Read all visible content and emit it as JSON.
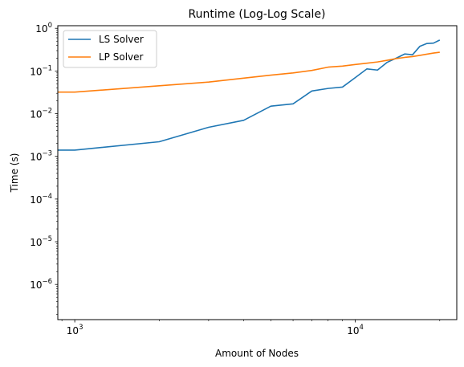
{
  "chart_data": {
    "type": "line",
    "title": "Runtime (Log-Log Scale)",
    "xlabel": "Amount of Nodes",
    "ylabel": "Time (s)",
    "xscale": "log",
    "yscale": "log",
    "xlim": [
      870,
      23000
    ],
    "ylim": [
      1.5e-07,
      1.15
    ],
    "grid": false,
    "legend": "top-left",
    "x_ticks": [
      {
        "value": 1000,
        "base": "10",
        "exp": "3"
      },
      {
        "value": 10000,
        "base": "10",
        "exp": "4"
      }
    ],
    "y_ticks": [
      {
        "value": 1e-06,
        "base": "10",
        "exp": "−6"
      },
      {
        "value": 1e-05,
        "base": "10",
        "exp": "−5"
      },
      {
        "value": 0.0001,
        "base": "10",
        "exp": "−4"
      },
      {
        "value": 0.001,
        "base": "10",
        "exp": "−3"
      },
      {
        "value": 0.01,
        "base": "10",
        "exp": "−2"
      },
      {
        "value": 0.1,
        "base": "10",
        "exp": "−1"
      },
      {
        "value": 1,
        "base": "10",
        "exp": "0"
      }
    ],
    "series": [
      {
        "name": "LS Solver",
        "color": "#1f77b4",
        "x": [
          870,
          1000,
          2000,
          3000,
          4000,
          5000,
          6000,
          7000,
          8000,
          9000,
          10000,
          11000,
          12000,
          13000,
          14000,
          15000,
          16000,
          17000,
          18000,
          19000,
          20000
        ],
        "y": [
          0.0014,
          0.0014,
          0.0022,
          0.0048,
          0.007,
          0.015,
          0.017,
          0.034,
          0.039,
          0.042,
          0.07,
          0.112,
          0.105,
          0.16,
          0.2,
          0.25,
          0.24,
          0.38,
          0.44,
          0.45,
          0.53
        ]
      },
      {
        "name": "LP Solver",
        "color": "#ff7f0e",
        "x": [
          870,
          1000,
          2000,
          3000,
          4000,
          5000,
          6000,
          7000,
          8000,
          9000,
          10000,
          11000,
          12000,
          13000,
          14000,
          15000,
          16000,
          17000,
          18000,
          19000,
          20000
        ],
        "y": [
          0.032,
          0.032,
          0.045,
          0.055,
          0.068,
          0.08,
          0.09,
          0.103,
          0.123,
          0.13,
          0.142,
          0.152,
          0.163,
          0.178,
          0.195,
          0.208,
          0.218,
          0.232,
          0.248,
          0.263,
          0.275
        ]
      }
    ]
  }
}
